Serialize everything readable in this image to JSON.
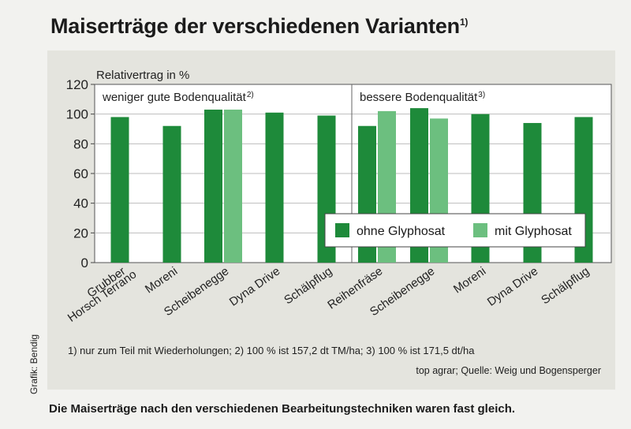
{
  "title": "Maiserträge der verschiedenen Varianten",
  "title_sup": "1)",
  "chart_data": {
    "type": "bar",
    "ylabel": "Relativertrag in %",
    "ylim": [
      0,
      120
    ],
    "yticks": [
      "0",
      "20",
      "40",
      "60",
      "80",
      "100",
      "120"
    ],
    "groups": [
      {
        "label": "weniger gute Bodenqualität",
        "sup": "2)"
      },
      {
        "label": "bessere Bodenqualität",
        "sup": "3)"
      }
    ],
    "categories": [
      [
        "Grubber",
        "Horsch Terrano"
      ],
      [
        "Moreni"
      ],
      [
        "Scheibenegge"
      ],
      [
        "Dyna Drive"
      ],
      [
        "Schälpflug"
      ],
      [
        "Reihenfräse"
      ],
      [
        "Scheibenegge"
      ],
      [
        "Moreni"
      ],
      [
        "Dyna Drive"
      ],
      [
        "Schälpflug"
      ]
    ],
    "series": [
      {
        "name": "ohne Glyphosat",
        "color": "#1e8a3a",
        "values": [
          98,
          92,
          103,
          101,
          99,
          92,
          104,
          100,
          94,
          98
        ]
      },
      {
        "name": "mit Glyphosat",
        "color": "#6cbf7f",
        "values": [
          null,
          null,
          103,
          null,
          null,
          102,
          97,
          null,
          null,
          null
        ]
      }
    ]
  },
  "footnote": "1) nur zum Teil mit Wiederholungen; 2) 100 % ist 157,2 dt TM/ha; 3) 100 % ist 171,5 dt/ha",
  "source": "top agrar; Quelle: Weig und Bogensperger",
  "credit": "Grafik: Bendig",
  "caption": "Die Maiserträge nach den verschiedenen Bearbeitungstechniken waren fast gleich."
}
